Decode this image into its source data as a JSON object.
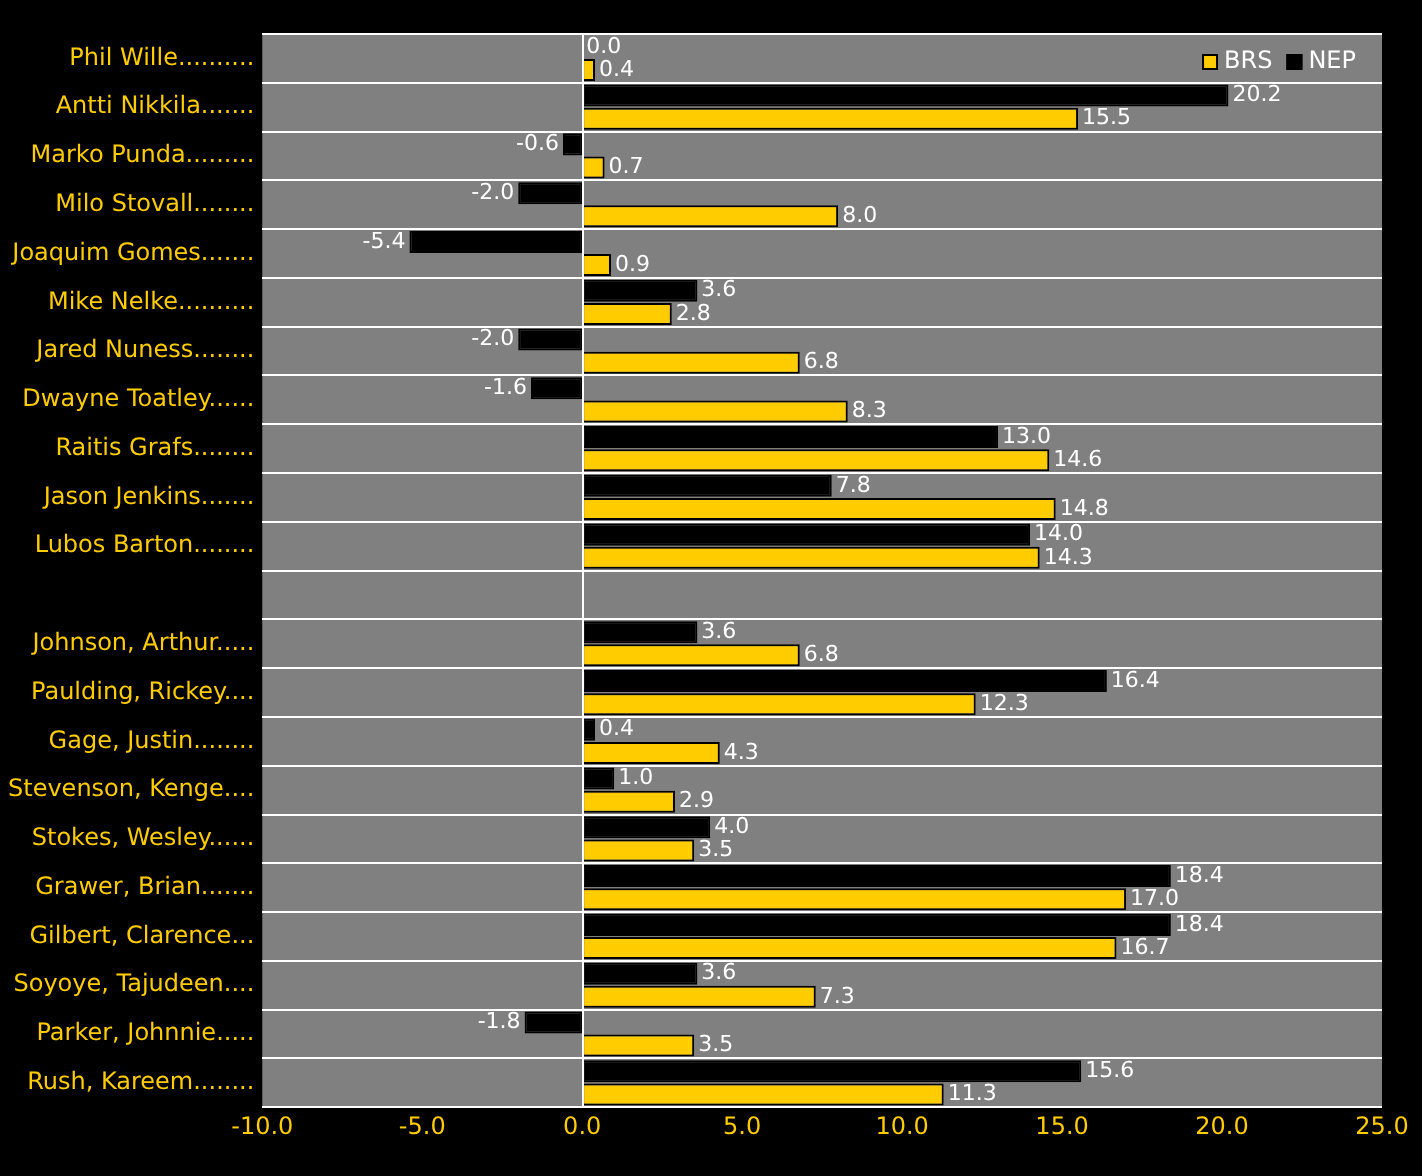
{
  "chart_data": {
    "type": "bar",
    "orientation": "horizontal",
    "categories": [
      "Phil Wille..........",
      "Antti Nikkila.......",
      "Marko Punda.........",
      "Milo Stovall........",
      "Joaquim Gomes.......",
      "Mike Nelke..........",
      "Jared Nuness........",
      "Dwayne Toatley......",
      "Raitis Grafs........",
      "Jason Jenkins.......",
      "Lubos Barton........",
      null,
      "Johnson, Arthur.....",
      "Paulding, Rickey....",
      "Gage, Justin........",
      "Stevenson, Kenge....",
      "Stokes, Wesley......",
      "Grawer, Brian.......",
      "Gilbert, Clarence...",
      "Soyoye, Tajudeen....",
      "Parker, Johnnie.....",
      "Rush, Kareem........"
    ],
    "series": [
      {
        "name": "BRS",
        "color": "#ffcc00",
        "values": [
          0.4,
          15.5,
          0.7,
          8.0,
          0.9,
          2.8,
          6.8,
          8.3,
          14.6,
          14.8,
          14.3,
          null,
          6.8,
          12.3,
          4.3,
          2.9,
          3.5,
          17.0,
          16.7,
          7.3,
          3.5,
          11.3
        ],
        "value_labels": [
          "0.4",
          "15.5",
          "0.7",
          "8.0",
          "0.9",
          "2.8",
          "6.8",
          "8.3",
          "14.6",
          "14.8",
          "14.3",
          null,
          "6.8",
          "12.3",
          "4.3",
          "2.9",
          "3.5",
          "17.0",
          "16.7",
          "7.3",
          "3.5",
          "11.3"
        ]
      },
      {
        "name": "NEP",
        "color": "#000000",
        "values": [
          0.0,
          20.2,
          -0.6,
          -2.0,
          -5.4,
          3.6,
          -2.0,
          -1.6,
          13.0,
          7.8,
          14.0,
          null,
          3.6,
          16.4,
          0.4,
          1.0,
          4.0,
          18.4,
          18.4,
          3.6,
          -1.8,
          15.6
        ],
        "value_labels": [
          "0.0",
          "20.2",
          "-0.6",
          "-2.0",
          "-5.4",
          "3.6",
          "-2.0",
          "-1.6",
          "13.0",
          "7.8",
          "14.0",
          null,
          "3.6",
          "16.4",
          "0.4",
          "1.0",
          "4.0",
          "18.4",
          "18.4",
          "3.6",
          "-1.8",
          "15.6"
        ]
      }
    ],
    "ref_lines": [
      {
        "axis": "x",
        "value": 0,
        "color": "#ffffff"
      }
    ],
    "xlim": [
      -10,
      25
    ],
    "xticks": [
      {
        "value": -10,
        "label": "-10.0"
      },
      {
        "value": -5,
        "label": "-5.0"
      },
      {
        "value": 0,
        "label": "0.0"
      },
      {
        "value": 5,
        "label": "5.0"
      },
      {
        "value": 10,
        "label": "10.0"
      },
      {
        "value": 15,
        "label": "15.0"
      },
      {
        "value": 20,
        "label": "20.0"
      },
      {
        "value": 25,
        "label": "25.0"
      }
    ],
    "grid": "y",
    "legend": "top right"
  }
}
